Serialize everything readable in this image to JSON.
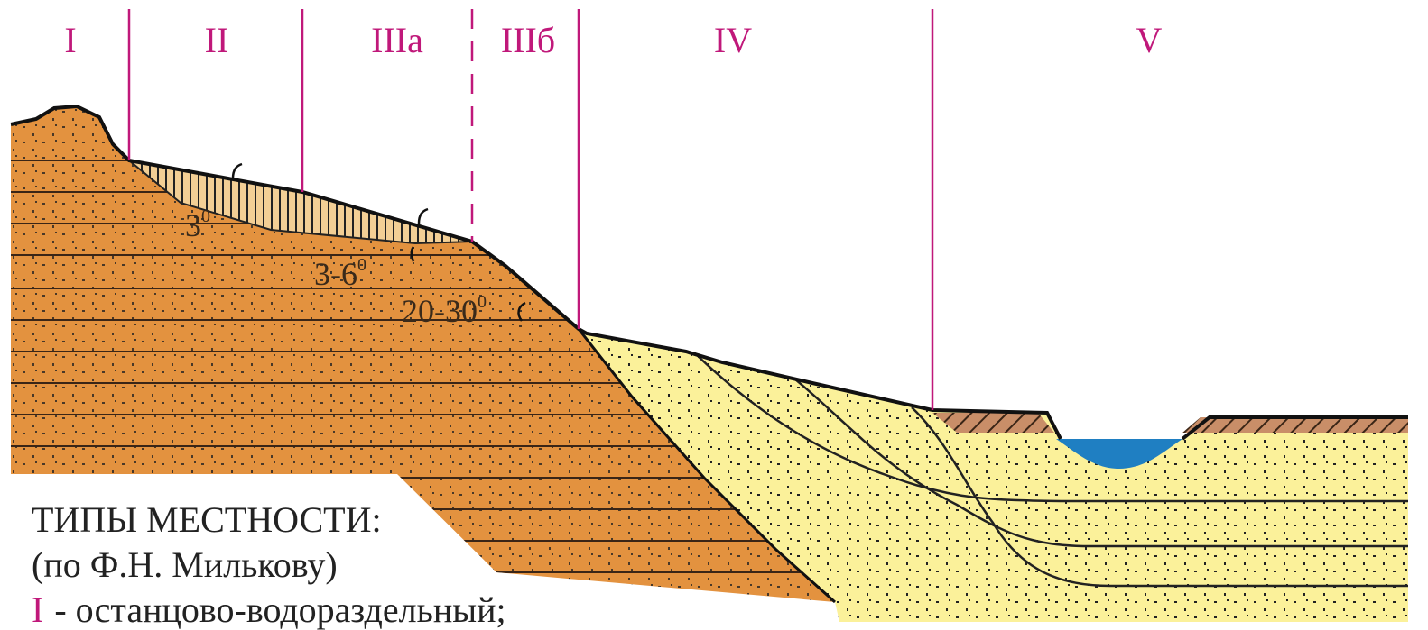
{
  "zones": [
    {
      "label": "I"
    },
    {
      "label": "II"
    },
    {
      "label": "IIIa"
    },
    {
      "label": "IIIб"
    },
    {
      "label": "IV"
    },
    {
      "label": "V"
    }
  ],
  "slope_labels": [
    {
      "text": "3",
      "sup": "0"
    },
    {
      "text": "3-6",
      "sup": "0"
    },
    {
      "text": "20-30",
      "sup": "0"
    }
  ],
  "legend": {
    "title": "ТИПЫ МЕСТНОСТИ:",
    "source": "(по Ф.Н. Милькову)",
    "items": [
      {
        "numeral": "I",
        "text": "- останцово-водораздельный;"
      }
    ]
  }
}
